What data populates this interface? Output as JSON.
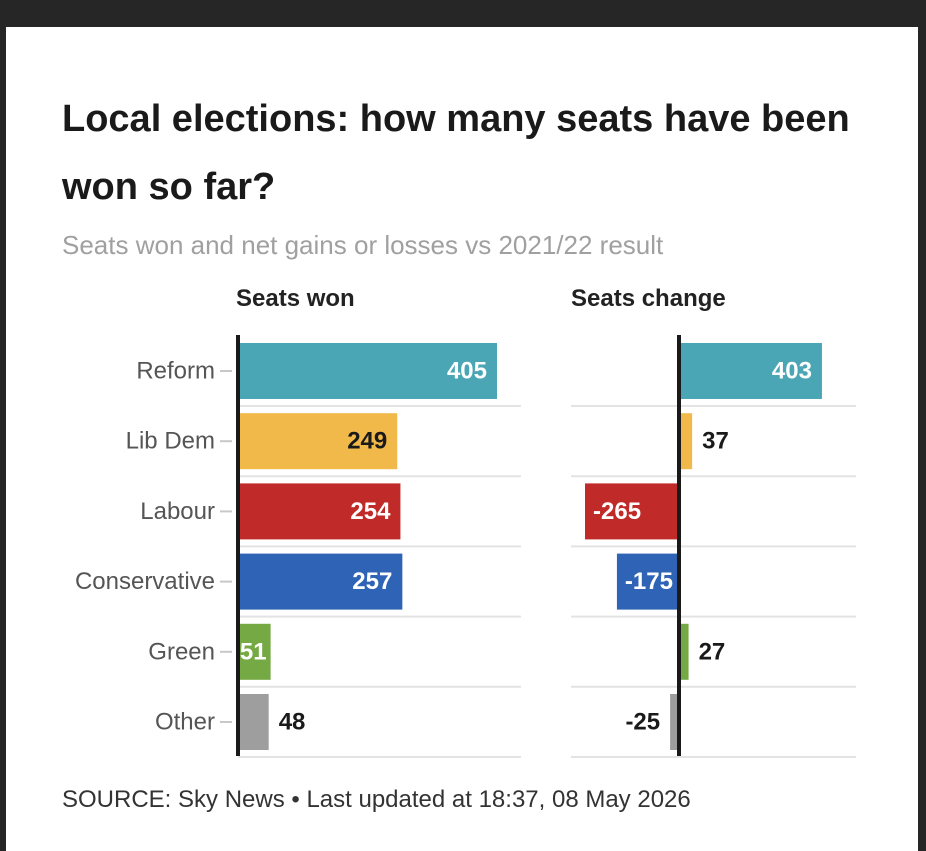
{
  "header": {
    "title": "Local elections: how many seats have been won so far?",
    "subtitle": "Seats won and net gains or losses vs 2021/22 result"
  },
  "footer": {
    "source": "SOURCE: Sky News • Last updated at 18:37, 08 May 2026"
  },
  "chart_data": [
    {
      "type": "bar",
      "orientation": "horizontal",
      "title": "Seats won",
      "categories": [
        "Reform",
        "Lib Dem",
        "Labour",
        "Conservative",
        "Green",
        "Other"
      ],
      "values": [
        405,
        249,
        254,
        257,
        51,
        48
      ],
      "colors": [
        "#4aa6b5",
        "#f0b94a",
        "#c02a28",
        "#2f63b5",
        "#74a944",
        "#9e9e9e"
      ],
      "grid": true
    },
    {
      "type": "bar",
      "orientation": "horizontal",
      "title": "Seats change",
      "categories": [
        "Reform",
        "Lib Dem",
        "Labour",
        "Conservative",
        "Green",
        "Other"
      ],
      "values": [
        403,
        37,
        -265,
        -175,
        27,
        -25
      ],
      "colors": [
        "#4aa6b5",
        "#f0b94a",
        "#c02a28",
        "#2f63b5",
        "#74a944",
        "#9e9e9e"
      ],
      "grid": true
    }
  ]
}
